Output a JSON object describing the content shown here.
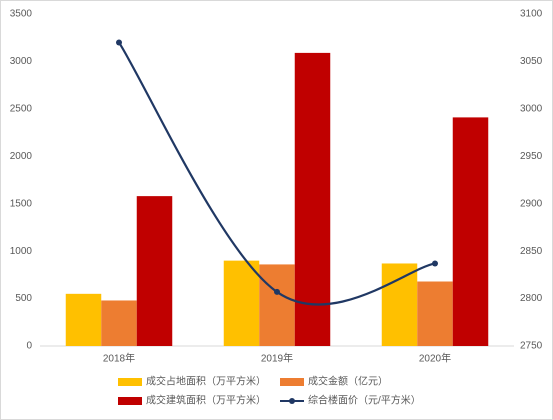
{
  "chart_data": {
    "type": "bar",
    "categories": [
      "2018年",
      "2019年",
      "2020年"
    ],
    "series": [
      {
        "name": "成交占地面积（万平方米）",
        "color": "#ffc000",
        "values": [
          550,
          900,
          870
        ]
      },
      {
        "name": "成交金额（亿元）",
        "color": "#ed7d31",
        "values": [
          480,
          860,
          680
        ]
      },
      {
        "name": "成交建筑面积（万平方米）",
        "color": "#c00000",
        "values": [
          1580,
          3090,
          2410
        ]
      },
      {
        "name": "综合楼面价（元/平方米）",
        "color": "#203864",
        "type": "line",
        "axis": "y2",
        "values": [
          3070,
          2807,
          2837
        ]
      }
    ],
    "ylim": [
      0,
      3500
    ],
    "yticks": [
      0,
      500,
      1000,
      1500,
      2000,
      2500,
      3000,
      3500
    ],
    "y2lim": [
      2750,
      3100
    ],
    "y2ticks": [
      2750,
      2800,
      2850,
      2900,
      2950,
      3000,
      3050,
      3100
    ],
    "grid": false
  }
}
